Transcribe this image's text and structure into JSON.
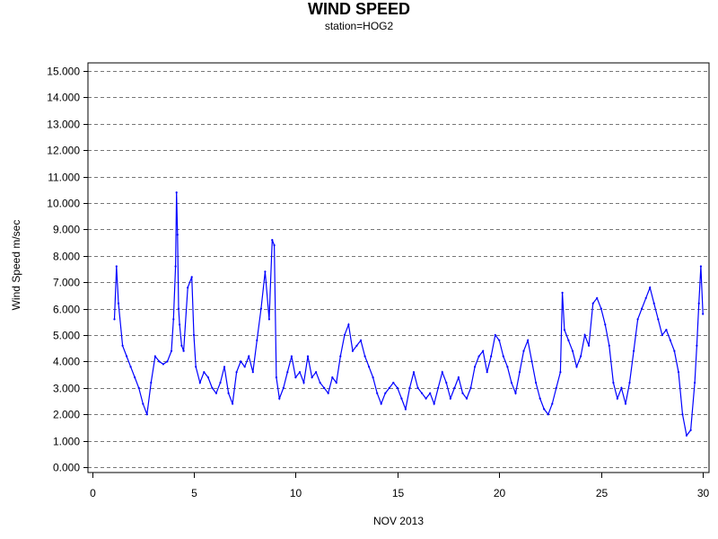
{
  "chart_data": {
    "type": "line",
    "title": "WIND SPEED",
    "subtitle": "station=HOG2",
    "xlabel": "NOV 2013",
    "ylabel": "Wind Speed m/sec",
    "xlim": [
      -0.2,
      30.3
    ],
    "ylim": [
      -0.2,
      15.3
    ],
    "x_ticks": [
      0,
      5,
      10,
      15,
      20,
      25,
      30
    ],
    "y_ticks": [
      0,
      1,
      2,
      3,
      4,
      5,
      6,
      7,
      8,
      9,
      10,
      11,
      12,
      13,
      14,
      15
    ],
    "y_tick_labels": [
      "0.000",
      "1.000",
      "2.000",
      "3.000",
      "4.000",
      "5.000",
      "6.000",
      "7.000",
      "8.000",
      "9.000",
      "10.000",
      "11.000",
      "12.000",
      "13.000",
      "14.000",
      "15.000"
    ],
    "grid": "horizontal dashed",
    "series": [
      {
        "color": "#0000ff",
        "x": [
          1.1,
          1.2,
          1.3,
          1.5,
          1.7,
          1.9,
          2.1,
          2.3,
          2.5,
          2.7,
          2.9,
          3.1,
          3.3,
          3.5,
          3.7,
          3.9,
          4.0,
          4.1,
          4.15,
          4.2,
          4.25,
          4.3,
          4.4,
          4.5,
          4.7,
          4.9,
          5.0,
          5.1,
          5.3,
          5.5,
          5.7,
          5.9,
          6.1,
          6.3,
          6.5,
          6.7,
          6.9,
          7.1,
          7.3,
          7.5,
          7.7,
          7.9,
          8.1,
          8.3,
          8.5,
          8.7,
          8.85,
          8.95,
          9.05,
          9.2,
          9.4,
          9.6,
          9.8,
          10.0,
          10.2,
          10.4,
          10.6,
          10.8,
          11.0,
          11.2,
          11.4,
          11.6,
          11.8,
          12.0,
          12.2,
          12.4,
          12.6,
          12.8,
          13.0,
          13.2,
          13.4,
          13.6,
          13.8,
          14.0,
          14.2,
          14.4,
          14.6,
          14.8,
          15.0,
          15.2,
          15.4,
          15.6,
          15.8,
          16.0,
          16.2,
          16.4,
          16.6,
          16.8,
          17.0,
          17.2,
          17.4,
          17.6,
          17.8,
          18.0,
          18.2,
          18.4,
          18.6,
          18.8,
          19.0,
          19.2,
          19.4,
          19.6,
          19.8,
          20.0,
          20.2,
          20.4,
          20.6,
          20.8,
          21.0,
          21.2,
          21.4,
          21.6,
          21.8,
          22.0,
          22.2,
          22.4,
          22.6,
          22.8,
          23.0,
          23.1,
          23.2,
          23.4,
          23.6,
          23.8,
          24.0,
          24.2,
          24.4,
          24.6,
          24.8,
          25.0,
          25.2,
          25.4,
          25.6,
          25.8,
          26.0,
          26.2,
          26.4,
          26.6,
          26.8,
          27.0,
          27.2,
          27.4,
          27.6,
          27.8,
          28.0,
          28.2,
          28.4,
          28.6,
          28.8,
          29.0,
          29.2,
          29.4,
          29.6,
          29.7,
          29.8,
          29.9,
          30.0
        ],
        "y": [
          5.6,
          7.6,
          6.2,
          4.6,
          4.2,
          3.8,
          3.4,
          3.0,
          2.4,
          2.0,
          3.2,
          4.2,
          4.0,
          3.9,
          4.0,
          4.4,
          5.6,
          7.6,
          10.4,
          8.8,
          6.0,
          5.4,
          4.6,
          4.4,
          6.8,
          7.2,
          5.0,
          3.8,
          3.2,
          3.6,
          3.4,
          3.0,
          2.8,
          3.2,
          3.8,
          2.8,
          2.4,
          3.6,
          4.0,
          3.8,
          4.2,
          3.6,
          4.8,
          6.0,
          7.4,
          5.6,
          8.6,
          8.4,
          3.4,
          2.6,
          3.0,
          3.6,
          4.2,
          3.4,
          3.6,
          3.2,
          4.2,
          3.4,
          3.6,
          3.2,
          3.0,
          2.8,
          3.4,
          3.2,
          4.2,
          5.0,
          5.4,
          4.4,
          4.6,
          4.8,
          4.2,
          3.8,
          3.4,
          2.8,
          2.4,
          2.8,
          3.0,
          3.2,
          3.0,
          2.6,
          2.2,
          3.0,
          3.6,
          3.0,
          2.8,
          2.6,
          2.8,
          2.4,
          3.0,
          3.6,
          3.2,
          2.6,
          3.0,
          3.4,
          2.8,
          2.6,
          3.0,
          3.8,
          4.2,
          4.4,
          3.6,
          4.2,
          5.0,
          4.8,
          4.2,
          3.8,
          3.2,
          2.8,
          3.6,
          4.4,
          4.8,
          4.0,
          3.2,
          2.6,
          2.2,
          2.0,
          2.4,
          3.0,
          3.6,
          6.6,
          5.2,
          4.8,
          4.4,
          3.8,
          4.2,
          5.0,
          4.6,
          6.2,
          6.4,
          6.0,
          5.4,
          4.6,
          3.2,
          2.6,
          3.0,
          2.4,
          3.2,
          4.4,
          5.6,
          6.0,
          6.4,
          6.8,
          6.2,
          5.6,
          5.0,
          5.2,
          4.8,
          4.4,
          3.6,
          2.0,
          1.2,
          1.4,
          3.2,
          4.6,
          6.2,
          7.6,
          5.8
        ]
      }
    ]
  }
}
